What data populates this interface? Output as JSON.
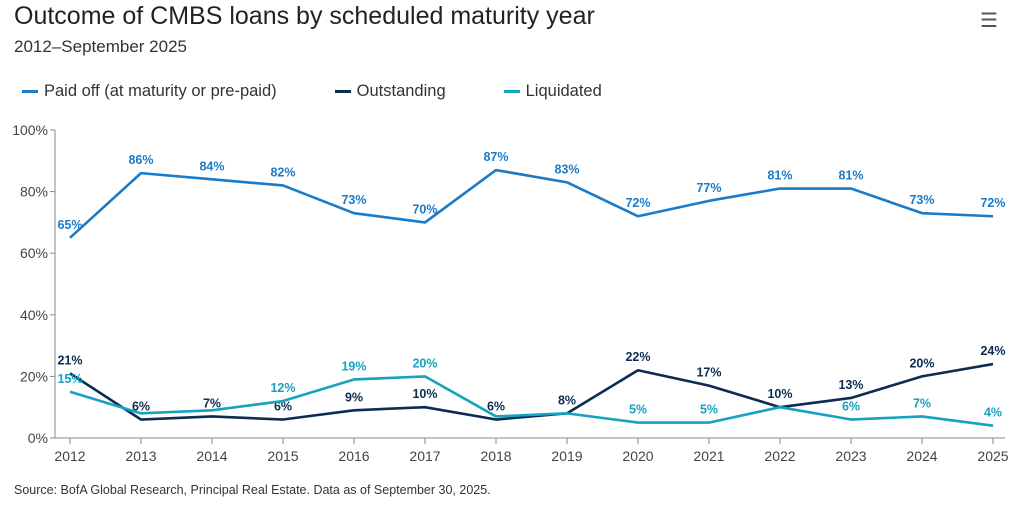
{
  "title": "Outcome of CMBS loans by scheduled maturity year",
  "subtitle": "2012–September 2025",
  "menu_icon": "hamburger-menu-icon",
  "source": "Source: BofA Global Research, Principal Real Estate. Data as of September 30, 2025.",
  "chart_data": {
    "type": "line",
    "x": [
      "2012",
      "2013",
      "2014",
      "2015",
      "2016",
      "2017",
      "2018",
      "2019",
      "2020",
      "2021",
      "2022",
      "2023",
      "2024",
      "2025"
    ],
    "ylim": [
      0,
      100
    ],
    "yticks": [
      "0%",
      "20%",
      "40%",
      "60%",
      "80%",
      "100%"
    ],
    "grid": true,
    "legend": "top-left",
    "series": [
      {
        "name": "Paid off (at maturity or pre-paid)",
        "color": "#1a7bc9",
        "values": [
          65,
          86,
          84,
          82,
          73,
          70,
          87,
          83,
          72,
          77,
          81,
          81,
          73,
          72
        ],
        "labels": [
          "65%",
          "86%",
          "84%",
          "82%",
          "73%",
          "70%",
          "87%",
          "83%",
          "72%",
          "77%",
          "81%",
          "81%",
          "73%",
          "72%"
        ]
      },
      {
        "name": "Outstanding",
        "color": "#0c2c52",
        "values": [
          21,
          6,
          7,
          6,
          9,
          10,
          6,
          8,
          22,
          17,
          10,
          13,
          20,
          24
        ],
        "labels": [
          "21%",
          "6%",
          "7%",
          "6%",
          "9%",
          "10%",
          "6%",
          "8%",
          "22%",
          "17%",
          "10%",
          "13%",
          "20%",
          "24%"
        ]
      },
      {
        "name": "Liquidated",
        "color": "#17a2bf",
        "values": [
          15,
          8,
          9,
          12,
          19,
          20,
          7,
          8,
          5,
          5,
          10,
          6,
          7,
          4
        ],
        "labels": [
          "15%",
          null,
          null,
          "12%",
          "19%",
          "20%",
          null,
          null,
          "5%",
          "5%",
          null,
          "6%",
          "7%",
          "4%"
        ]
      }
    ]
  }
}
